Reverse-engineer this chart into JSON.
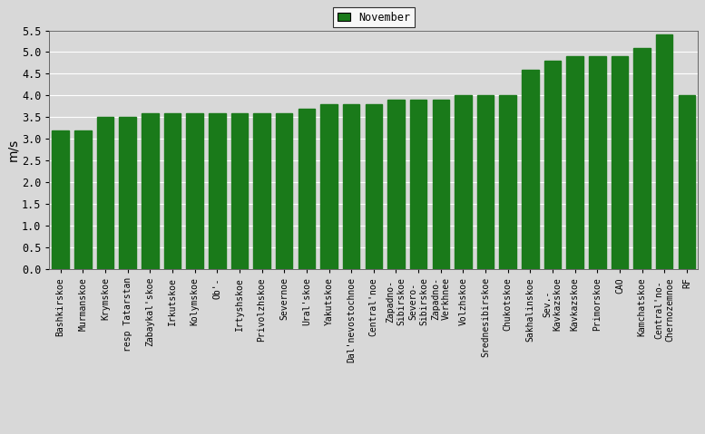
{
  "categories": [
    "Bashkirskoe",
    "Murmanskoe",
    "Krymskoe",
    "resp Tatarstan",
    "Zabaykal'skoe",
    "Irkutskoe",
    "Kolymskoe",
    "Ob'-",
    "Irtyshskoe",
    "Privolzhskoe",
    "Severnoe",
    "Ural'skoe",
    "Yakutskoe",
    "Dal'nevostochnoe",
    "Central'noe",
    "Zapadno-\nSibirskoe",
    "Severo-\nSibirskoe",
    "Zapadno-\nVerkhnee",
    "Volzhskoe",
    "Srednesibirskoe",
    "Chukotskoe",
    "Sakhalinskoe",
    "Sev.-\nKavkazskoe",
    "Kavkazskoe",
    "Primorskoe",
    "CAO",
    "Kamchatskoe",
    "Central'no-\nChernozemnoe",
    "RF"
  ],
  "values": [
    3.2,
    3.2,
    3.5,
    3.5,
    3.6,
    3.6,
    3.6,
    3.6,
    3.6,
    3.6,
    3.6,
    3.7,
    3.8,
    3.8,
    3.8,
    3.9,
    3.9,
    3.9,
    4.0,
    4.0,
    4.0,
    4.6,
    4.8,
    4.9,
    4.9,
    4.9,
    5.1,
    5.4,
    4.0
  ],
  "bar_color": "#1a7a1a",
  "legend_label": "November",
  "ylabel": "m/s",
  "ylim": [
    0,
    5.5
  ],
  "yticks": [
    0,
    0.5,
    1.0,
    1.5,
    2.0,
    2.5,
    3.0,
    3.5,
    4.0,
    4.5,
    5.0,
    5.5
  ],
  "bg_color": "#d8d8d8",
  "plot_bg_color": "#d8d8d8"
}
